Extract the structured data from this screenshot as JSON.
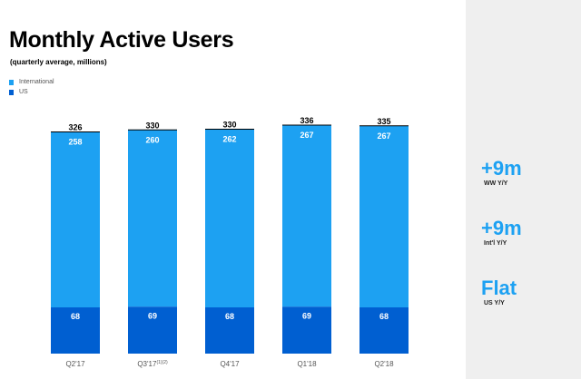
{
  "title": "Monthly Active Users",
  "subtitle": "(quarterly average, millions)",
  "colors": {
    "international": "#1da1f2",
    "us": "#005fd1",
    "accent": "#1da1f2",
    "sidebar_bg": "#efefef"
  },
  "legend": [
    {
      "label": "International",
      "color": "#1da1f2"
    },
    {
      "label": "US",
      "color": "#005fd1"
    }
  ],
  "chart_data": {
    "type": "bar",
    "stacked": true,
    "title": "Monthly Active Users",
    "subtitle": "(quarterly average, millions)",
    "categories": [
      "Q2'17",
      "Q3'17",
      "Q4'17",
      "Q1'18",
      "Q2'18"
    ],
    "category_superscripts": [
      "",
      "(1)(2)",
      "",
      "",
      ""
    ],
    "series": [
      {
        "name": "US",
        "values": [
          68,
          69,
          68,
          69,
          68
        ],
        "color": "#005fd1"
      },
      {
        "name": "International",
        "values": [
          258,
          260,
          262,
          267,
          267
        ],
        "color": "#1da1f2"
      }
    ],
    "totals": [
      326,
      330,
      330,
      336,
      335
    ],
    "ylim": [
      0,
      336
    ],
    "xlabel": "",
    "ylabel": "",
    "legend_position": "top-left",
    "grid": false
  },
  "stats": [
    {
      "value": "+9m",
      "label": "WW Y/Y"
    },
    {
      "value": "+9m",
      "label": "Int'l Y/Y"
    },
    {
      "value": "Flat",
      "label": "US Y/Y"
    }
  ]
}
